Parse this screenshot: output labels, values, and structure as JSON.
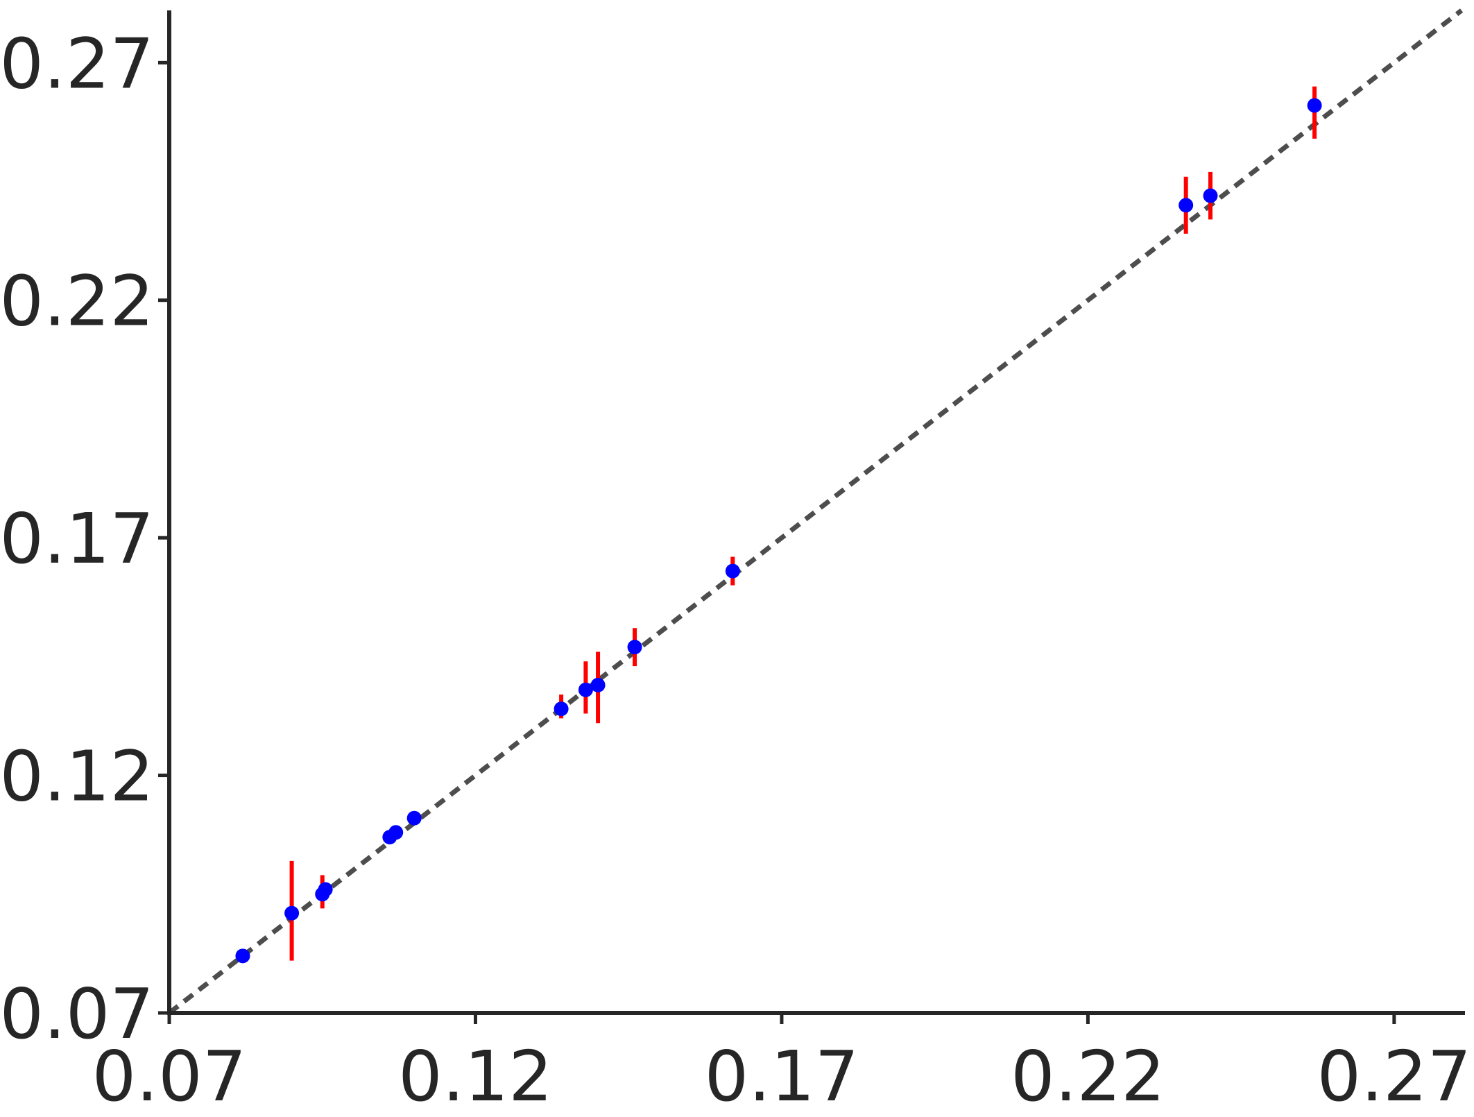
{
  "chart_data": {
    "type": "scatter",
    "title": "",
    "xlabel": "",
    "ylabel": "",
    "xlim": [
      0.07,
      0.281
    ],
    "ylim": [
      0.07,
      0.281
    ],
    "x_ticks": [
      0.07,
      0.12,
      0.17,
      0.22,
      0.27
    ],
    "y_ticks": [
      0.07,
      0.12,
      0.17,
      0.22,
      0.27
    ],
    "x_tick_labels": [
      "0.07",
      "0.12",
      "0.17",
      "0.22",
      "0.27"
    ],
    "y_tick_labels": [
      "0.07",
      "0.12",
      "0.17",
      "0.22",
      "0.27"
    ],
    "grid": false,
    "reference_line": {
      "style": "dotted",
      "slope": 1,
      "intercept": 0,
      "color": "#4d4d4d"
    },
    "point_color": "#0000ff",
    "error_bar_color": "#ff0000",
    "points": [
      {
        "x": 0.082,
        "y": 0.082,
        "y_low": 0.082,
        "y_high": 0.082
      },
      {
        "x": 0.09,
        "y": 0.091,
        "y_low": 0.081,
        "y_high": 0.102
      },
      {
        "x": 0.095,
        "y": 0.095,
        "y_low": 0.092,
        "y_high": 0.099
      },
      {
        "x": 0.0955,
        "y": 0.096,
        "y_low": 0.096,
        "y_high": 0.096
      },
      {
        "x": 0.106,
        "y": 0.107,
        "y_low": 0.107,
        "y_high": 0.107
      },
      {
        "x": 0.107,
        "y": 0.108,
        "y_low": 0.108,
        "y_high": 0.108
      },
      {
        "x": 0.11,
        "y": 0.111,
        "y_low": 0.111,
        "y_high": 0.111
      },
      {
        "x": 0.134,
        "y": 0.134,
        "y_low": 0.132,
        "y_high": 0.137
      },
      {
        "x": 0.138,
        "y": 0.138,
        "y_low": 0.133,
        "y_high": 0.144
      },
      {
        "x": 0.14,
        "y": 0.139,
        "y_low": 0.131,
        "y_high": 0.146
      },
      {
        "x": 0.146,
        "y": 0.147,
        "y_low": 0.143,
        "y_high": 0.151
      },
      {
        "x": 0.162,
        "y": 0.163,
        "y_low": 0.16,
        "y_high": 0.166
      },
      {
        "x": 0.236,
        "y": 0.24,
        "y_low": 0.234,
        "y_high": 0.246
      },
      {
        "x": 0.24,
        "y": 0.242,
        "y_low": 0.237,
        "y_high": 0.247
      },
      {
        "x": 0.257,
        "y": 0.261,
        "y_low": 0.254,
        "y_high": 0.265
      }
    ]
  }
}
